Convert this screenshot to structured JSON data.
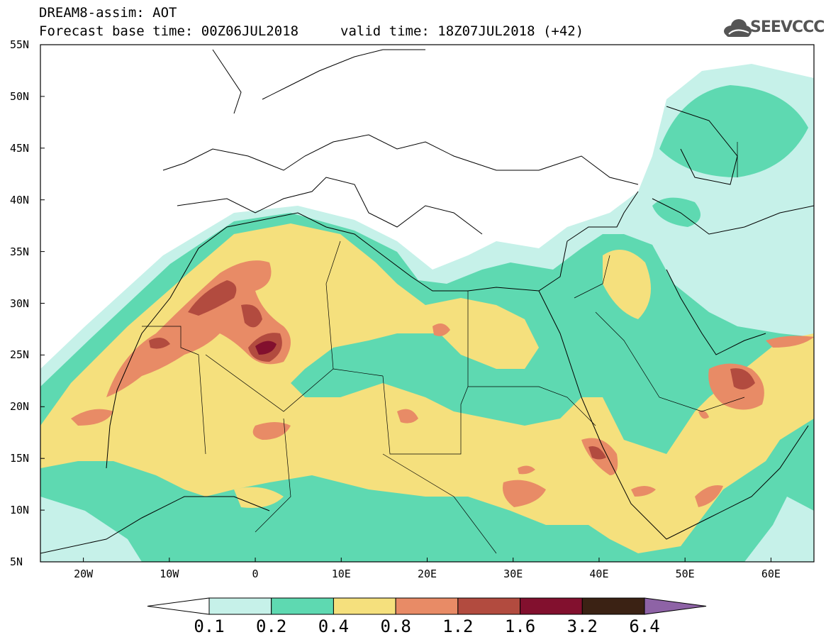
{
  "header": {
    "title_line1": "DREAM8-assim: AOT",
    "title_line2": "Forecast base time: 00Z06JUL2018",
    "valid_time": "valid time: 18Z07JUL2018 (+42)",
    "logo_text": "SEEVCCC"
  },
  "map": {
    "lat_labels": [
      "55N",
      "50N",
      "45N",
      "40N",
      "35N",
      "30N",
      "25N",
      "20N",
      "15N",
      "10N",
      "5N"
    ],
    "lon_labels": [
      "20W",
      "10W",
      "0",
      "10E",
      "20E",
      "30E",
      "40E",
      "50E",
      "60E"
    ],
    "extent": {
      "lon": [
        -25,
        65
      ],
      "lat": [
        5,
        55
      ]
    },
    "field": "Aerosol optical thickness (AOT)"
  },
  "colorbar": {
    "labels": [
      "0.1",
      "0.2",
      "0.4",
      "0.8",
      "1.2",
      "1.6",
      "3.2",
      "6.4"
    ],
    "colors": [
      "#ffffff",
      "#c6f1e9",
      "#5ed9b1",
      "#f5e07d",
      "#e88b66",
      "#b24b3f",
      "#82102e",
      "#3b2214",
      "#8e63a6"
    ]
  }
}
